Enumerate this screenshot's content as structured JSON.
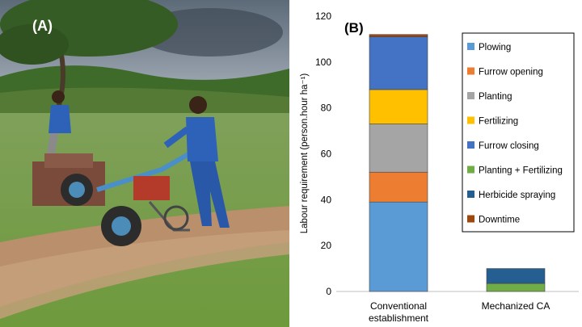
{
  "panels": {
    "photo_label": "(A)",
    "chart_label": "(B)"
  },
  "photo": {
    "description_icon": "photo-farm-machine-icon"
  },
  "chart_data": {
    "type": "bar",
    "stacked": true,
    "title": "",
    "xlabel": "",
    "ylabel": "Labour requirement (person.hour ha⁻¹)",
    "ylim": [
      0,
      120
    ],
    "yticks": [
      0,
      20,
      40,
      60,
      80,
      100,
      120
    ],
    "grid": false,
    "legend_position": "right",
    "categories": [
      "Conventional establishment",
      "Mechanized CA"
    ],
    "category_lines": [
      [
        "Conventional",
        "establishment"
      ],
      [
        "Mechanized CA"
      ]
    ],
    "series": [
      {
        "name": "Plowing",
        "color": "#5b9bd5",
        "values": [
          39,
          0
        ]
      },
      {
        "name": "Furrow opening",
        "color": "#ed7d31",
        "values": [
          13,
          0
        ]
      },
      {
        "name": "Planting",
        "color": "#a5a5a5",
        "values": [
          21,
          0
        ]
      },
      {
        "name": "Fertilizing",
        "color": "#ffc000",
        "values": [
          15,
          0
        ]
      },
      {
        "name": "Furrow closing",
        "color": "#4472c4",
        "values": [
          23,
          0
        ]
      },
      {
        "name": "Planting + Fertilizing",
        "color": "#70ad47",
        "values": [
          0,
          3.5
        ]
      },
      {
        "name": "Herbicide spraying",
        "color": "#255e91",
        "values": [
          0,
          6.5
        ]
      },
      {
        "name": "Downtime",
        "color": "#9e480e",
        "values": [
          1,
          0
        ]
      }
    ]
  }
}
